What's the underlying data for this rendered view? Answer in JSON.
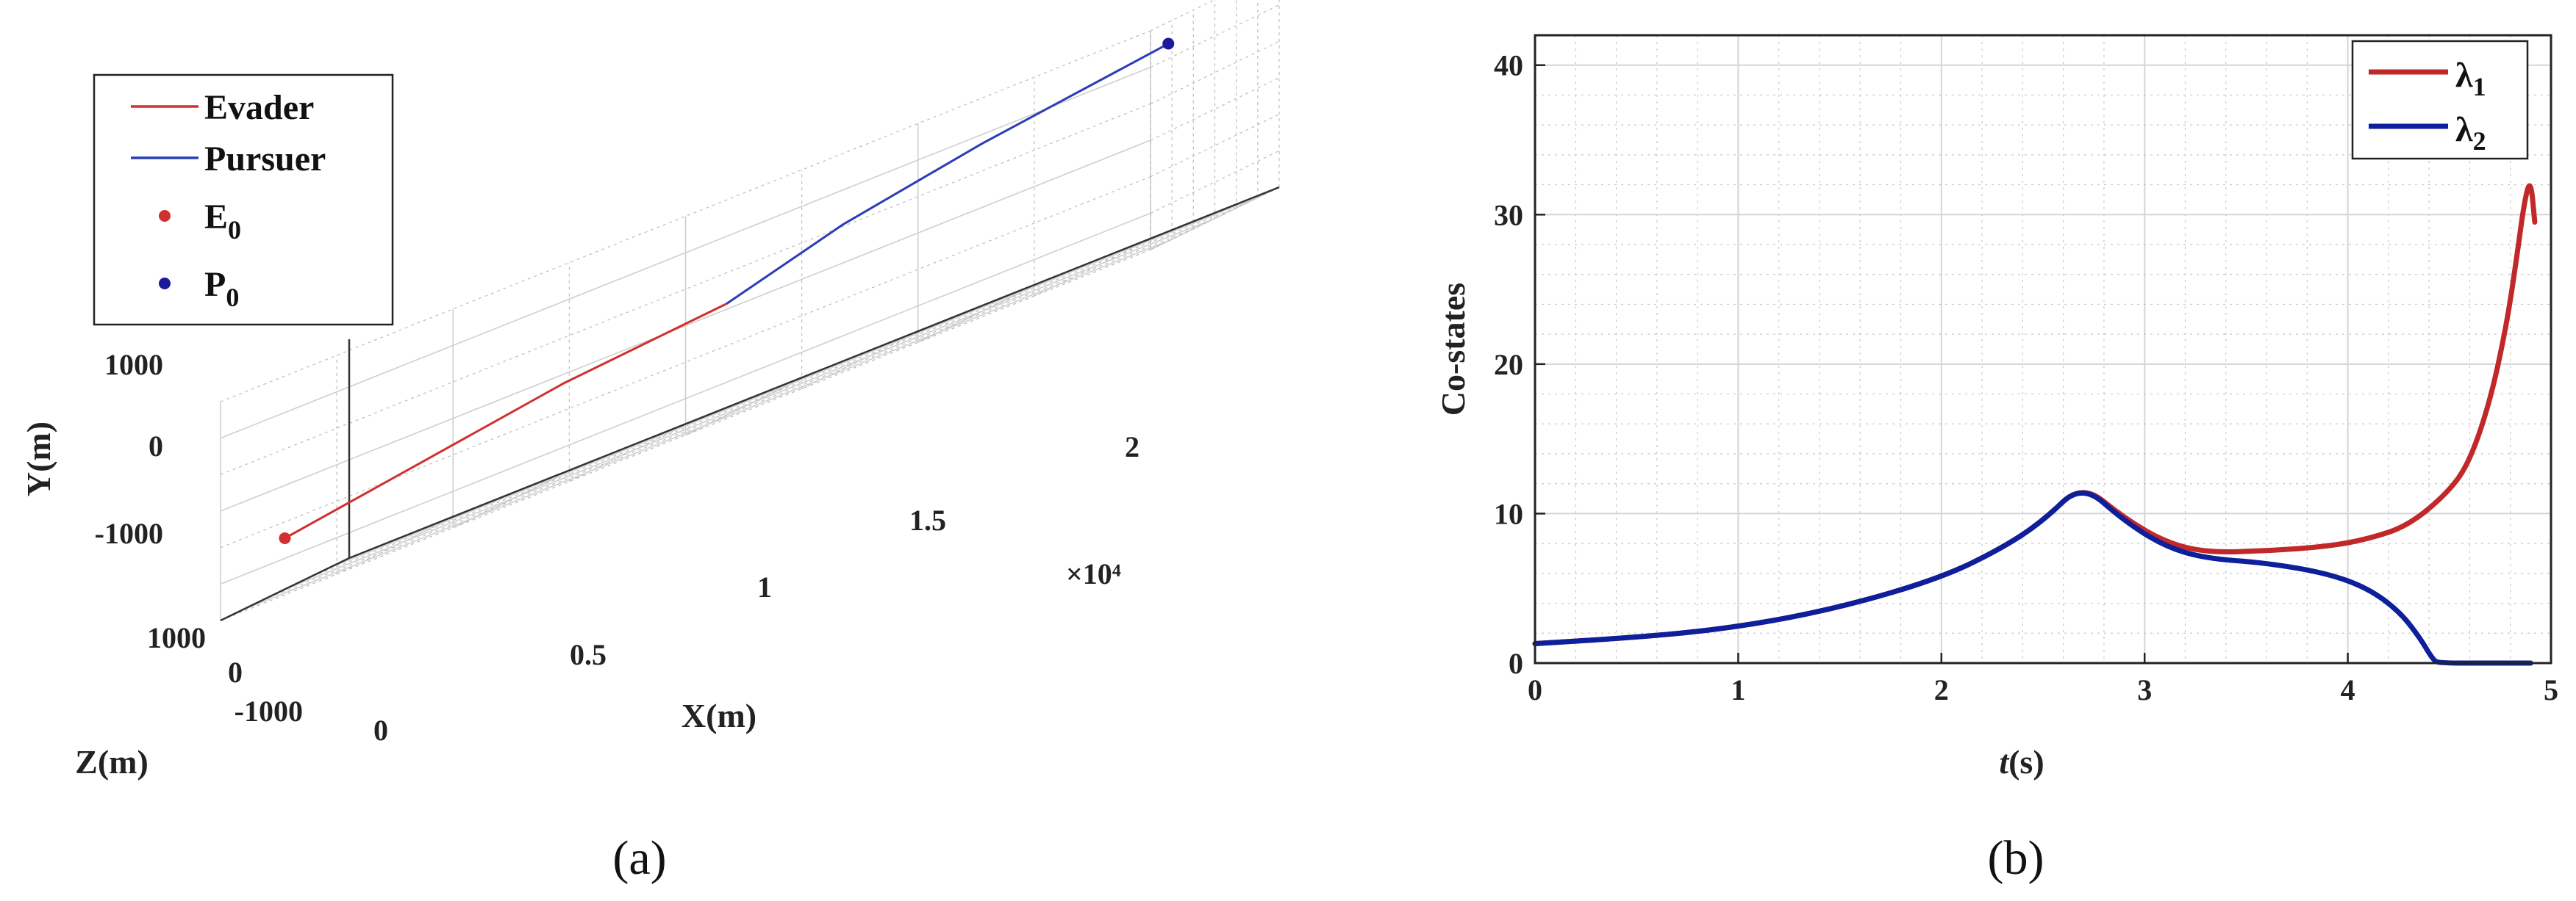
{
  "chart_data": [
    {
      "type": "line",
      "projection": "3d",
      "caption": "(a)",
      "xlabel": "X(m)",
      "ylabel": "Y(m)",
      "zlabel": "Z(m)",
      "x_multiplier": "×10⁴",
      "xticks": [
        "0",
        "0.5",
        "1",
        "1.5",
        "2"
      ],
      "yticks": [
        "-1000",
        "0",
        "1000"
      ],
      "zticks": [
        "-1000",
        "0",
        "1000"
      ],
      "xlim": [
        0,
        20000
      ],
      "ylim": [
        -1500,
        1500
      ],
      "zlim": [
        -1500,
        1500
      ],
      "grid": true,
      "legend_position": "top-left",
      "series": [
        {
          "name": "Evader",
          "kind": "line",
          "color": "#d03030",
          "x": [
            0,
            3000,
            6000,
            9500
          ],
          "y": [
            -800,
            -500,
            -200,
            0
          ],
          "z": [
            0,
            0,
            0,
            0
          ]
        },
        {
          "name": "Pursuer",
          "kind": "line",
          "color": "#2a3cb8",
          "x": [
            9500,
            12000,
            15000,
            19000
          ],
          "y": [
            0,
            450,
            800,
            1150
          ],
          "z": [
            0,
            0,
            0,
            0
          ]
        },
        {
          "name": "E_0",
          "name_main": "E",
          "name_sub": "0",
          "kind": "marker",
          "color": "#d03030",
          "x": [
            0
          ],
          "y": [
            -800
          ],
          "z": [
            0
          ]
        },
        {
          "name": "P_0",
          "name_main": "P",
          "name_sub": "0",
          "kind": "marker",
          "color": "#1a1a9a",
          "x": [
            19000
          ],
          "y": [
            1150
          ],
          "z": [
            0
          ]
        }
      ]
    },
    {
      "type": "line",
      "caption": "(b)",
      "xlabel_italic": "t",
      "xlabel_rest": "(s)",
      "ylabel": "Co-states",
      "xlim": [
        0,
        5
      ],
      "ylim": [
        0,
        42
      ],
      "xticks": [
        0,
        1,
        2,
        3,
        4,
        5
      ],
      "yticks": [
        0,
        10,
        20,
        30,
        40
      ],
      "grid": true,
      "legend_position": "top-right",
      "series": [
        {
          "name": "λ1",
          "name_main": "λ",
          "name_sub": "1",
          "color": "#c0282a",
          "x": [
            0,
            0.5,
            1,
            1.5,
            2,
            2.3,
            2.5,
            2.69,
            2.9,
            3.1,
            3.3,
            3.6,
            3.9,
            4.1,
            4.3,
            4.5,
            4.6,
            4.7,
            4.78,
            4.83,
            4.87,
            4.9,
            4.92
          ],
          "y": [
            1.3,
            1.7,
            2.4,
            3.7,
            5.7,
            7.7,
            9.5,
            12.0,
            9.7,
            8.1,
            7.4,
            7.5,
            7.8,
            8.3,
            9.2,
            11.5,
            13.5,
            17.5,
            22.5,
            27.0,
            31.0,
            32.4,
            29.5
          ]
        },
        {
          "name": "λ2",
          "name_main": "λ",
          "name_sub": "2",
          "color": "#0d1f9a",
          "x": [
            0,
            0.5,
            1,
            1.5,
            2,
            2.3,
            2.5,
            2.69,
            2.9,
            3.1,
            3.3,
            3.6,
            3.9,
            4.1,
            4.25,
            4.35,
            4.42,
            4.45,
            4.7,
            4.9
          ],
          "y": [
            1.3,
            1.7,
            2.4,
            3.7,
            5.7,
            7.7,
            9.5,
            12.0,
            9.5,
            7.8,
            7.0,
            6.7,
            6.0,
            5.0,
            3.5,
            1.8,
            0.2,
            0,
            0,
            0
          ]
        }
      ]
    }
  ]
}
